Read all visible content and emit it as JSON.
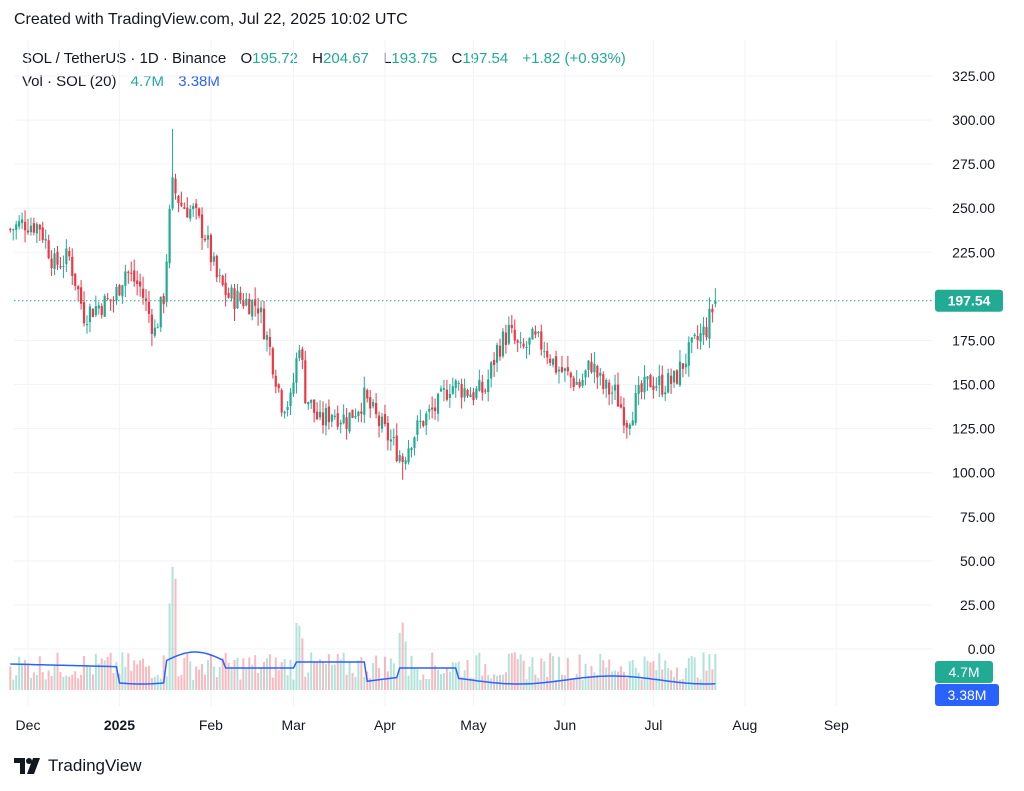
{
  "header": {
    "created_text": "Created with TradingView.com, Jul 22, 2025 10:02 UTC"
  },
  "legend": {
    "symbol": "SOL / TetherUS · 1D · Binance",
    "o_label": "O",
    "o_value": "195.72",
    "h_label": "H",
    "h_value": "204.67",
    "l_label": "L",
    "l_value": "193.75",
    "c_label": "C",
    "c_value": "197.54",
    "change": "+1.82 (+0.93%)",
    "vol_label": "Vol · SOL (20)",
    "vol_value": "4.7M",
    "vol_ma_value": "3.38M"
  },
  "footer": {
    "brand": "TradingView"
  },
  "colors": {
    "up": "#22ab94",
    "down": "#f23645",
    "vol_ma": "#2962ff",
    "price_label_bg": "#22ab94",
    "vol_label_bg": "#22ab94",
    "ma_label_bg": "#2962ff"
  },
  "chart_data": {
    "type": "candlestick",
    "symbol": "SOL / TetherUS",
    "interval": "1D",
    "exchange": "Binance",
    "y_ticks": [
      "325.00",
      "300.00",
      "275.00",
      "250.00",
      "225.00",
      "197.54",
      "175.00",
      "150.00",
      "125.00",
      "100.00",
      "75.00",
      "50.00",
      "25.00",
      "0.00"
    ],
    "ylim": [
      0,
      340
    ],
    "x_ticks": [
      "Dec",
      "2025",
      "Feb",
      "Mar",
      "Apr",
      "May",
      "Jun",
      "Jul",
      "Aug",
      "Sep"
    ],
    "last_price": 197.54,
    "last_price_label": "197.54",
    "volume_label": "4.7M",
    "volume_ma_label": "3.38M",
    "price_path": [
      [
        "2024-11-25",
        238
      ],
      [
        "2024-11-30",
        242
      ],
      [
        "2024-12-05",
        240
      ],
      [
        "2024-12-10",
        218
      ],
      [
        "2024-12-15",
        222
      ],
      [
        "2024-12-20",
        190
      ],
      [
        "2024-12-25",
        195
      ],
      [
        "2024-12-30",
        198
      ],
      [
        "2025-01-03",
        215
      ],
      [
        "2025-01-08",
        205
      ],
      [
        "2025-01-13",
        180
      ],
      [
        "2025-01-16",
        200
      ],
      [
        "2025-01-18",
        245
      ],
      [
        "2025-01-19",
        262
      ],
      [
        "2025-01-22",
        252
      ],
      [
        "2025-01-26",
        248
      ],
      [
        "2025-01-30",
        235
      ],
      [
        "2025-02-03",
        210
      ],
      [
        "2025-02-07",
        200
      ],
      [
        "2025-02-12",
        198
      ],
      [
        "2025-02-17",
        195
      ],
      [
        "2025-02-21",
        170
      ],
      [
        "2025-02-25",
        140
      ],
      [
        "2025-02-28",
        140
      ],
      [
        "2025-03-03",
        175
      ],
      [
        "2025-03-05",
        145
      ],
      [
        "2025-03-10",
        128
      ],
      [
        "2025-03-14",
        135
      ],
      [
        "2025-03-19",
        130
      ],
      [
        "2025-03-25",
        142
      ],
      [
        "2025-03-30",
        128
      ],
      [
        "2025-04-03",
        118
      ],
      [
        "2025-04-07",
        108
      ],
      [
        "2025-04-10",
        120
      ],
      [
        "2025-04-14",
        130
      ],
      [
        "2025-04-19",
        138
      ],
      [
        "2025-04-23",
        150
      ],
      [
        "2025-04-27",
        148
      ],
      [
        "2025-05-01",
        145
      ],
      [
        "2025-05-05",
        147
      ],
      [
        "2025-05-09",
        170
      ],
      [
        "2025-05-13",
        180
      ],
      [
        "2025-05-17",
        168
      ],
      [
        "2025-05-21",
        175
      ],
      [
        "2025-05-25",
        172
      ],
      [
        "2025-05-29",
        160
      ],
      [
        "2025-06-02",
        155
      ],
      [
        "2025-06-06",
        150
      ],
      [
        "2025-06-10",
        162
      ],
      [
        "2025-06-14",
        148
      ],
      [
        "2025-06-18",
        145
      ],
      [
        "2025-06-22",
        130
      ],
      [
        "2025-06-26",
        143
      ],
      [
        "2025-06-30",
        152
      ],
      [
        "2025-07-04",
        150
      ],
      [
        "2025-07-08",
        152
      ],
      [
        "2025-07-12",
        165
      ],
      [
        "2025-07-16",
        175
      ],
      [
        "2025-07-19",
        182
      ],
      [
        "2025-07-22",
        197.54
      ]
    ]
  }
}
